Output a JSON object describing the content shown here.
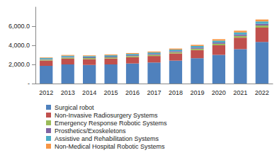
{
  "chart_data": {
    "type": "bar",
    "stacked": true,
    "grid": false,
    "legend": "bottom",
    "categories": [
      "2012",
      "2013",
      "2014",
      "2015",
      "2016",
      "2017",
      "2018",
      "2019",
      "2020",
      "2021",
      "2022"
    ],
    "ylim": [
      0,
      8000
    ],
    "yticks": [
      {
        "value": 0,
        "label": "-"
      },
      {
        "value": 2000,
        "label": "2,000.0"
      },
      {
        "value": 4000,
        "label": "4,000.0"
      },
      {
        "value": 6000,
        "label": "6,000.0"
      }
    ],
    "series": [
      {
        "name": "Surgical robot",
        "color": "#4f81bd",
        "values": [
          1850,
          2000,
          1950,
          2000,
          2100,
          2200,
          2400,
          2650,
          3000,
          3600,
          4350
        ]
      },
      {
        "name": "Non-Invasive Radiosurgery Systems",
        "color": "#c0504d",
        "values": [
          550,
          600,
          600,
          620,
          650,
          680,
          750,
          850,
          1000,
          1200,
          1500
        ]
      },
      {
        "name": "Emergency Response Robotic Systems",
        "color": "#9bbb59",
        "values": [
          100,
          110,
          110,
          115,
          120,
          125,
          135,
          145,
          160,
          180,
          220
        ]
      },
      {
        "name": "Prosthetics/Exoskeletons",
        "color": "#8064a2",
        "values": [
          60,
          70,
          75,
          80,
          85,
          95,
          105,
          115,
          130,
          150,
          180
        ]
      },
      {
        "name": "Assistive and Rehabilitation Systems",
        "color": "#4bacc6",
        "values": [
          120,
          130,
          135,
          140,
          145,
          150,
          160,
          170,
          200,
          220,
          250
        ]
      },
      {
        "name": "Non-Medical Hospital Robotic Systems",
        "color": "#f79646",
        "values": [
          70,
          80,
          80,
          85,
          90,
          100,
          110,
          120,
          150,
          180,
          200
        ]
      }
    ]
  }
}
